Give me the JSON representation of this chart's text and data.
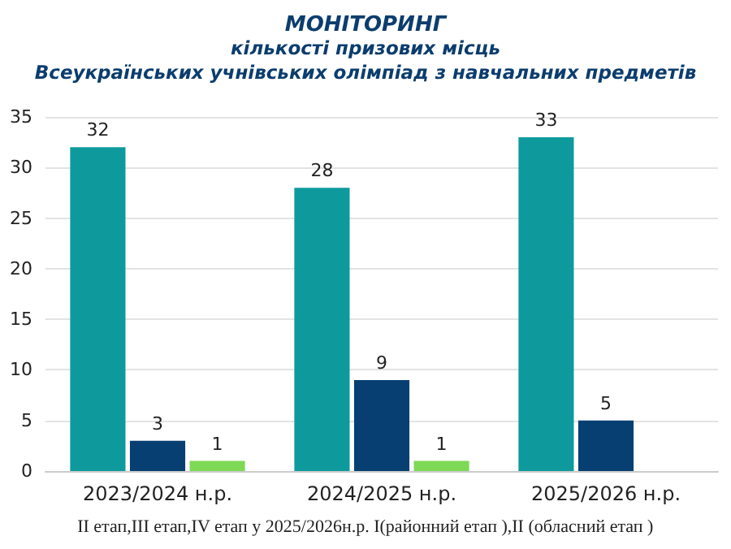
{
  "chart_data": {
    "type": "bar",
    "title": "МОНІТОРИНГ",
    "subtitle": "кількості призових місць\nВсеукраїнських учнівських олімпіад з навчальних предметів",
    "categories": [
      "2023/2024 н.р.",
      "2024/2025 н.р.",
      "2025/2026 н.р."
    ],
    "series": [
      {
        "color": "#0e9a9c",
        "values": [
          32,
          28,
          33
        ]
      },
      {
        "color": "#073f73",
        "values": [
          3,
          9,
          5
        ]
      },
      {
        "color": "#7ed957",
        "values": [
          1,
          1,
          null
        ]
      }
    ],
    "ylim": [
      0,
      35
    ],
    "yticks": [
      0,
      5,
      10,
      15,
      20,
      25,
      30,
      35
    ],
    "grid": "y",
    "data_labels": true,
    "annotations": [
      "II етап,III етап,IV етап у 2025/2026н.р. I(районний етап ),II (обласний етап )"
    ]
  }
}
